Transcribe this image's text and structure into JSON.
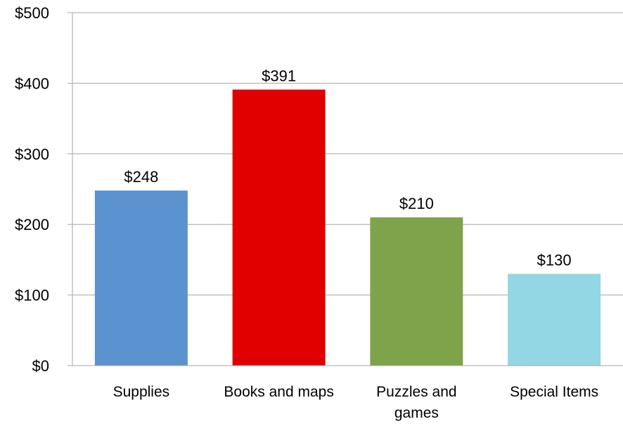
{
  "chart_data": {
    "type": "bar",
    "categories": [
      [
        "Supplies"
      ],
      [
        "Books and maps"
      ],
      [
        "Puzzles and",
        "games"
      ],
      [
        "Special Items"
      ]
    ],
    "values": [
      248,
      391,
      210,
      130
    ],
    "data_labels": [
      "$248",
      "$391",
      "$210",
      "$130"
    ],
    "bar_colors": [
      "#5a93cf",
      "#e00000",
      "#7ea34a",
      "#93d6e4"
    ],
    "y_ticks": [
      0,
      100,
      200,
      300,
      400,
      500
    ],
    "y_tick_labels": [
      "$0",
      "$100",
      "$200",
      "$300",
      "$400",
      "$500"
    ],
    "ylim": [
      0,
      500
    ],
    "grid": true,
    "grid_color": "#a6a6a6",
    "axis_color": "#a6a6a6",
    "legend": "none"
  }
}
